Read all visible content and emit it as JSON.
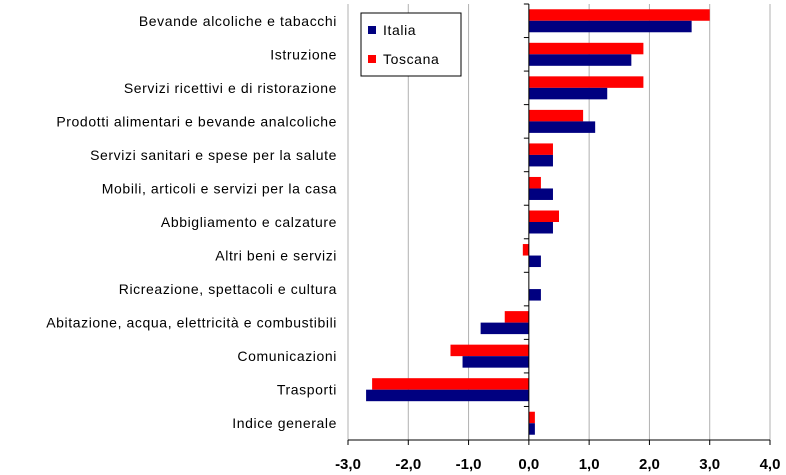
{
  "chart_data": {
    "type": "bar",
    "orientation": "horizontal",
    "categories": [
      "Bevande alcoliche e tabacchi",
      "Istruzione",
      "Servizi ricettivi e di ristorazione",
      "Prodotti alimentari e bevande analcoliche",
      "Servizi sanitari e spese per la salute",
      "Mobili, articoli e servizi per la casa",
      "Abbigliamento e calzature",
      "Altri beni e servizi",
      "Ricreazione, spettacoli e cultura",
      "Abitazione, acqua, elettricità e combustibili",
      "Comunicazioni",
      "Trasporti",
      "Indice generale"
    ],
    "series": [
      {
        "name": "Italia",
        "color": "#000080",
        "values": [
          2.7,
          1.7,
          1.3,
          1.1,
          0.4,
          0.4,
          0.4,
          0.2,
          0.2,
          -0.8,
          -1.1,
          -2.7,
          0.1
        ]
      },
      {
        "name": "Toscana",
        "color": "#FF0000",
        "values": [
          3.0,
          1.9,
          1.9,
          0.9,
          0.4,
          0.2,
          0.5,
          -0.1,
          0.0,
          -0.4,
          -1.3,
          -2.6,
          0.1
        ]
      }
    ],
    "xlim": [
      -3.0,
      4.0
    ],
    "ticks": [
      "-3,0",
      "-2,0",
      "-1,0",
      "0,0",
      "1,0",
      "2,0",
      "3,0",
      "4,0"
    ],
    "grid": "vertical",
    "legend_position": "top-left of plot area"
  }
}
